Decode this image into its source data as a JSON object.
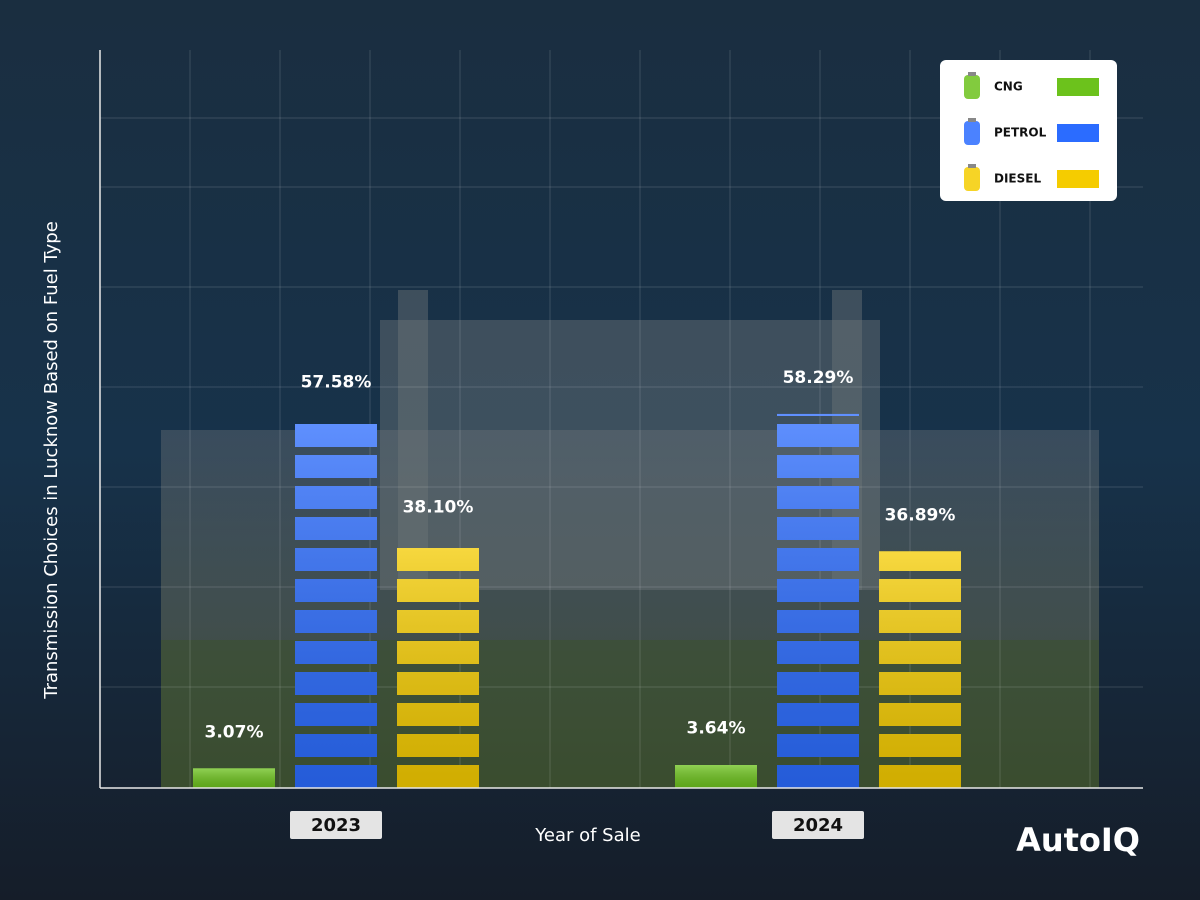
{
  "chart_data": {
    "type": "bar",
    "y_axis_label": "Transmission Choices in Lucknow Based on Fuel Type",
    "x_axis_label": "Year of Sale",
    "brand": "AutoIQ",
    "categories": [
      "2023",
      "2024"
    ],
    "ylim": [
      0,
      115
    ],
    "legend": "top-right",
    "series": [
      {
        "name": "CNG",
        "color": "#6cc21c",
        "values": [
          3.07,
          3.64
        ],
        "value_labels": [
          "3.07%",
          "3.64%"
        ]
      },
      {
        "name": "PETROL",
        "color": "#2b6cff",
        "values": [
          57.58,
          58.29
        ],
        "value_labels": [
          "57.58%",
          "58.29%"
        ]
      },
      {
        "name": "DIESEL",
        "color": "#f5cc00",
        "values": [
          38.1,
          36.89
        ],
        "value_labels": [
          "38.10%",
          "36.89%"
        ]
      }
    ]
  }
}
